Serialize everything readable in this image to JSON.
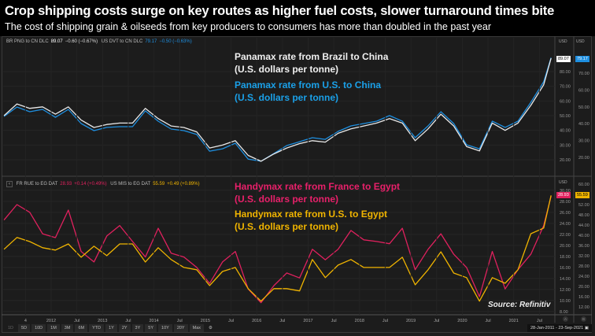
{
  "title": "Crop shipping costs surge on key routes as higher fuel costs, slower turnaround times bite",
  "subtitle": "The cost of shipping grain & oilseeds from key producers to consumers has more than doubled in the past year",
  "source": "Source: Refinitiv",
  "toolbar": {
    "buttons": [
      "1D",
      "5D",
      "10D",
      "1M",
      "3M",
      "6M",
      "YTD",
      "1Y",
      "2Y",
      "3Y",
      "5Y",
      "10Y",
      "20Y",
      "Max"
    ],
    "settings_icon": "gear-icon",
    "date_range": "28-Jan-2011  -  23-Sep-2021",
    "calendar_icon": "calendar-icon",
    "axis_buttons": [
      "A",
      "B"
    ]
  },
  "colors": {
    "brazil_china": "#e8e8e8",
    "us_china": "#1e8fe0",
    "france_egypt": "#e0215e",
    "us_egypt": "#f0b400",
    "background": "#1c1c1c"
  },
  "chart_data": [
    {
      "type": "line",
      "legend_header": [
        {
          "code": "BR PNG to CN DLC",
          "last": "89.07",
          "change": "−0.60 (−0.67%)"
        },
        {
          "code": "US DVT to CN DLC",
          "last": "79.17",
          "change": "−0.50 (−0.63%)"
        }
      ],
      "annotations": [
        {
          "line1": "Panamax rate from Brazil to China",
          "line2": "(U.S. dollars per tonne)"
        },
        {
          "line1": "Panamax rate from U.S. to China",
          "line2": "(U.S. dollars per tonne)"
        }
      ],
      "axis_unit": "USD",
      "left_axis": {
        "ticks": [
          "20.00",
          "30.00",
          "40.00",
          "50.00",
          "60.00",
          "70.00",
          "80.00"
        ],
        "range": [
          12,
          103
        ]
      },
      "right_axis": {
        "ticks": [
          "20.00",
          "30.00",
          "40.00",
          "50.00",
          "60.00",
          "70.00"
        ],
        "range": [
          11.6,
          91
        ]
      },
      "x": [
        "2011-02",
        "2011-05",
        "2011-08",
        "2011-11",
        "2012-02",
        "2012-05",
        "2012-08",
        "2012-11",
        "2013-02",
        "2013-05",
        "2013-08",
        "2013-11",
        "2014-02",
        "2014-05",
        "2014-08",
        "2014-11",
        "2015-02",
        "2015-05",
        "2015-08",
        "2015-11",
        "2016-02",
        "2016-05",
        "2016-08",
        "2016-11",
        "2017-02",
        "2017-05",
        "2017-08",
        "2017-11",
        "2018-02",
        "2018-05",
        "2018-08",
        "2018-11",
        "2019-02",
        "2019-05",
        "2019-08",
        "2019-11",
        "2020-02",
        "2020-05",
        "2020-08",
        "2020-11",
        "2021-02",
        "2021-05",
        "2021-08",
        "2021-09-23"
      ],
      "series": [
        {
          "axis": "left",
          "values": [
            50,
            58,
            55,
            56,
            51,
            56,
            47,
            42,
            44,
            45,
            45,
            55,
            48,
            43,
            42,
            39,
            28,
            30,
            33,
            23,
            19,
            24,
            28,
            31,
            33,
            32,
            38,
            41,
            43,
            45,
            48,
            45,
            33,
            41,
            51,
            43,
            29,
            26,
            45,
            40,
            45,
            57,
            71,
            89.07
          ]
        },
        {
          "axis": "right",
          "values": [
            44.3,
            49.9,
            47.1,
            48.5,
            43.8,
            48.5,
            40.1,
            35.9,
            37.8,
            38.2,
            38.2,
            47.6,
            41.5,
            36.8,
            35.9,
            33.6,
            23.7,
            25.1,
            28.4,
            19,
            17.7,
            22.3,
            27,
            29.3,
            31.7,
            30.7,
            35.4,
            38.7,
            40.1,
            41.5,
            44.8,
            41.5,
            31.7,
            38.7,
            47.1,
            40.1,
            27.5,
            25.1,
            41.5,
            37.8,
            41.5,
            52.7,
            64.9,
            79.17
          ]
        }
      ]
    },
    {
      "type": "line",
      "legend_header": [
        {
          "code": "FR RUE to EG DAT",
          "last": "28.93",
          "change": "+0.14 (+0.49%)"
        },
        {
          "code": "US MIS to EG DAT",
          "last": "55.59",
          "change": "+0.49 (+0.89%)"
        }
      ],
      "annotations": [
        {
          "line1": "Handymax rate from France to Egypt",
          "line2": "(U.S. dollars per tonne)"
        },
        {
          "line1": "Handymax rate from U.S. to Egypt",
          "line2": "(U.S. dollars per tonne)"
        }
      ],
      "axis_unit": "USD",
      "left_axis": {
        "ticks": [
          "8.00",
          "10.00",
          "12.00",
          "14.00",
          "16.00",
          "18.00",
          "20.00",
          "22.00",
          "24.00",
          "26.00",
          "28.00",
          "30.00"
        ],
        "range": [
          7.7,
          31.4
        ]
      },
      "right_axis": {
        "ticks": [
          "12.00",
          "16.00",
          "20.00",
          "24.00",
          "28.00",
          "32.00",
          "36.00",
          "40.00",
          "44.00",
          "48.00",
          "52.00",
          "60.00"
        ],
        "range": [
          9.5,
          60.6
        ]
      },
      "x": [
        "2011-02",
        "2011-05",
        "2011-08",
        "2011-11",
        "2012-02",
        "2012-05",
        "2012-08",
        "2012-11",
        "2013-02",
        "2013-05",
        "2013-08",
        "2013-11",
        "2014-02",
        "2014-05",
        "2014-08",
        "2014-11",
        "2015-02",
        "2015-05",
        "2015-08",
        "2015-11",
        "2016-02",
        "2016-05",
        "2016-08",
        "2016-11",
        "2017-02",
        "2017-05",
        "2017-08",
        "2017-11",
        "2018-02",
        "2018-05",
        "2018-08",
        "2018-11",
        "2019-02",
        "2019-05",
        "2019-08",
        "2019-11",
        "2020-02",
        "2020-05",
        "2020-08",
        "2020-11",
        "2021-02",
        "2021-05",
        "2021-08",
        "2021-09-23"
      ],
      "series": [
        {
          "axis": "left",
          "values": [
            24.6,
            27.4,
            26,
            22.1,
            21.4,
            26.4,
            18.9,
            17,
            21.7,
            23.6,
            20.7,
            17.9,
            23.1,
            18.6,
            17.9,
            16,
            13.1,
            17,
            18.9,
            12.1,
            9.6,
            12.7,
            15,
            14.1,
            19.3,
            17.4,
            19.3,
            22.7,
            21,
            20.7,
            20.3,
            23.1,
            15.6,
            19.3,
            22.1,
            18.4,
            16,
            10.7,
            18.9,
            12.1,
            15.6,
            18.4,
            23.6,
            28.93
          ]
        },
        {
          "axis": "right",
          "values": [
            34.5,
            39.1,
            37.5,
            35.1,
            34.2,
            36.6,
            31.4,
            35.7,
            32,
            36.6,
            36.6,
            29.5,
            35.1,
            30.5,
            27.4,
            26.5,
            20.3,
            25.8,
            27.4,
            19.1,
            14.2,
            19.1,
            19.1,
            18.2,
            30.5,
            23.4,
            28.3,
            30.5,
            27.4,
            27.4,
            27.4,
            31.4,
            20.6,
            26.5,
            33.5,
            25.2,
            23.4,
            14.2,
            23.4,
            21.2,
            26.5,
            40.6,
            42.8,
            55.59
          ]
        }
      ]
    }
  ],
  "x_axis": {
    "ticks": [
      {
        "label": "4",
        "date": "2011-07"
      },
      {
        "label": "2012",
        "date": "2012-01"
      },
      {
        "label": "Jul",
        "date": "2012-07"
      },
      {
        "label": "2013",
        "date": "2013-01"
      },
      {
        "label": "Jul",
        "date": "2013-07"
      },
      {
        "label": "2014",
        "date": "2014-01"
      },
      {
        "label": "Jul",
        "date": "2014-07"
      },
      {
        "label": "2015",
        "date": "2015-01"
      },
      {
        "label": "Jul",
        "date": "2015-07"
      },
      {
        "label": "2016",
        "date": "2016-01"
      },
      {
        "label": "Jul",
        "date": "2016-07"
      },
      {
        "label": "2017",
        "date": "2017-01"
      },
      {
        "label": "Jul",
        "date": "2017-07"
      },
      {
        "label": "2018",
        "date": "2018-01"
      },
      {
        "label": "Jul",
        "date": "2018-07"
      },
      {
        "label": "2019",
        "date": "2019-01"
      },
      {
        "label": "Jul",
        "date": "2019-07"
      },
      {
        "label": "2020",
        "date": "2020-01"
      },
      {
        "label": "Jul",
        "date": "2020-07"
      },
      {
        "label": "2021",
        "date": "2021-01"
      },
      {
        "label": "Jul",
        "date": "2021-07"
      }
    ]
  }
}
